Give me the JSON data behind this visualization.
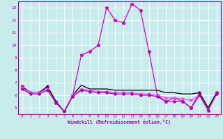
{
  "xlabel": "Windchill (Refroidissement éolien,°C)",
  "background_color": "#c8ecec",
  "grid_color": "#ffffff",
  "xlim": [
    -0.5,
    23.5
  ],
  "ylim": [
    4.5,
    13.5
  ],
  "xticks": [
    0,
    1,
    2,
    3,
    4,
    5,
    6,
    7,
    8,
    9,
    10,
    11,
    12,
    13,
    14,
    15,
    16,
    17,
    18,
    19,
    20,
    21,
    22,
    23
  ],
  "yticks": [
    5,
    6,
    7,
    8,
    9,
    10,
    11,
    12,
    13
  ],
  "series": [
    {
      "y": [
        6.7,
        6.2,
        6.2,
        6.7,
        5.5,
        4.7,
        6.0,
        9.2,
        9.5,
        10.0,
        13.0,
        12.0,
        11.8,
        13.3,
        12.8,
        9.5,
        6.0,
        5.5,
        5.8,
        5.5,
        5.0,
        6.2,
        4.8,
        6.2
      ],
      "color": "#cc00cc",
      "linewidth": 0.9,
      "marker": "*",
      "markersize": 3.5
    },
    {
      "y": [
        6.7,
        6.2,
        6.2,
        6.7,
        5.5,
        4.7,
        6.0,
        6.8,
        6.5,
        6.5,
        6.5,
        6.4,
        6.4,
        6.4,
        6.4,
        6.4,
        6.4,
        6.2,
        6.2,
        6.1,
        6.1,
        6.2,
        5.0,
        6.2
      ],
      "color": "#000000",
      "linewidth": 0.9,
      "marker": null,
      "markersize": 0
    },
    {
      "y": [
        6.6,
        6.2,
        6.2,
        6.5,
        5.4,
        4.7,
        6.0,
        6.5,
        6.4,
        6.3,
        6.3,
        6.2,
        6.2,
        6.2,
        6.1,
        6.1,
        6.0,
        5.8,
        5.8,
        5.7,
        5.6,
        6.0,
        4.8,
        6.1
      ],
      "color": "#ff44ff",
      "linewidth": 0.9,
      "marker": "*",
      "markersize": 3.0
    },
    {
      "y": [
        6.5,
        6.1,
        6.1,
        6.4,
        5.4,
        4.7,
        5.9,
        6.4,
        6.3,
        6.2,
        6.2,
        6.1,
        6.1,
        6.1,
        6.0,
        6.0,
        5.9,
        5.5,
        5.5,
        5.5,
        5.0,
        6.0,
        4.8,
        6.1
      ],
      "color": "#aa00aa",
      "linewidth": 0.9,
      "marker": "*",
      "markersize": 3.0
    }
  ]
}
